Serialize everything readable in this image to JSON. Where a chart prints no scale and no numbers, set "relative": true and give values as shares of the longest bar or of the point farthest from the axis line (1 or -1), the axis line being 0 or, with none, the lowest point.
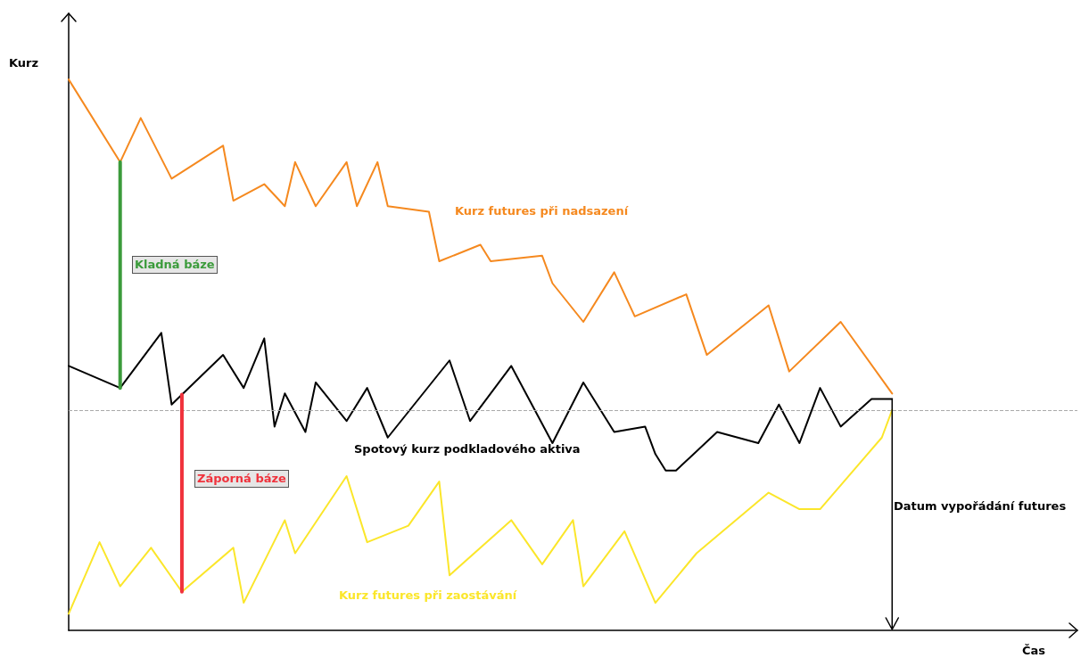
{
  "chart_data": {
    "type": "line",
    "relative": true,
    "xlabel": "Čas",
    "ylabel": "Kurz",
    "categories": [
      null,
      null,
      null,
      null,
      null,
      null,
      null,
      null,
      null,
      null,
      null,
      null,
      null,
      null,
      null,
      null,
      null,
      null,
      null,
      null,
      null,
      null,
      null,
      null,
      null,
      null,
      null,
      null,
      null,
      null,
      null,
      null,
      null,
      null,
      null,
      null,
      null,
      null,
      null,
      null,
      null,
      null,
      null,
      null,
      null,
      null,
      null,
      null,
      null,
      null,
      null,
      null,
      null,
      null,
      null,
      null,
      null,
      null,
      null,
      null,
      null,
      null,
      null,
      null,
      null,
      null,
      null,
      null,
      null,
      null,
      null,
      null,
      null,
      null,
      null,
      null,
      null,
      null,
      null,
      null,
      null,
      null,
      null,
      null,
      null,
      null,
      null,
      null,
      null,
      null,
      null,
      null,
      null,
      null,
      null,
      null,
      null,
      null,
      null
    ],
    "series": [
      {
        "name": "Kurz futures při nadsazení",
        "color": "#f5891f",
        "values": [
          1.0,
          null,
          null,
          null,
          null,
          0.85,
          null,
          0.93,
          null,
          null,
          0.82,
          null,
          null,
          null,
          null,
          0.88,
          0.78,
          null,
          null,
          0.81,
          null,
          0.77,
          0.85,
          null,
          0.77,
          null,
          null,
          0.85,
          0.77,
          null,
          0.85,
          0.77,
          null,
          null,
          null,
          0.76,
          0.67,
          null,
          null,
          null,
          0.7,
          0.67,
          null,
          null,
          null,
          null,
          0.68,
          0.63,
          null,
          null,
          0.56,
          null,
          null,
          0.65,
          null,
          0.57,
          null,
          null,
          null,
          null,
          0.61,
          null,
          0.5,
          null,
          null,
          null,
          null,
          null,
          0.59,
          null,
          0.47,
          null,
          null,
          null,
          null,
          0.56,
          null,
          null,
          null,
          null,
          0.43,
          null,
          null,
          null,
          null,
          null,
          null,
          null,
          null,
          null,
          null,
          null,
          null,
          null,
          null,
          null,
          null,
          null,
          null
        ]
      },
      {
        "name": "Spotový kurz podkladového aktiva",
        "color": "#000000",
        "values": [
          0.48,
          null,
          null,
          null,
          null,
          0.44,
          null,
          null,
          null,
          0.54,
          0.41,
          null,
          null,
          null,
          null,
          0.5,
          null,
          0.44,
          null,
          0.53,
          0.37,
          0.43,
          null,
          0.36,
          0.45,
          null,
          null,
          0.38,
          null,
          0.44,
          null,
          0.35,
          null,
          null,
          null,
          null,
          null,
          0.49,
          null,
          0.38,
          null,
          null,
          null,
          0.48,
          null,
          null,
          null,
          0.34,
          null,
          null,
          0.45,
          null,
          null,
          0.36,
          null,
          null,
          0.37,
          0.32,
          0.29,
          0.29,
          null,
          null,
          null,
          0.36,
          null,
          null,
          null,
          0.34,
          null,
          0.41,
          null,
          0.34,
          null,
          0.44,
          null,
          0.37,
          null,
          null,
          0.42,
          null,
          0.42,
          null,
          null,
          null,
          null,
          null,
          null,
          null,
          null,
          null,
          null,
          null,
          null,
          null,
          null,
          null,
          null,
          null,
          null
        ]
      },
      {
        "name": "Kurz futures při zaostávání",
        "color": "#fbe62a",
        "values": [
          0.03,
          null,
          null,
          0.16,
          null,
          0.08,
          null,
          null,
          0.15,
          null,
          null,
          0.07,
          null,
          null,
          null,
          null,
          0.15,
          0.05,
          null,
          null,
          null,
          0.2,
          0.14,
          null,
          null,
          null,
          null,
          0.28,
          null,
          0.16,
          null,
          null,
          null,
          0.19,
          null,
          null,
          0.27,
          0.1,
          null,
          null,
          null,
          null,
          null,
          0.2,
          null,
          null,
          0.12,
          null,
          null,
          0.2,
          0.08,
          null,
          null,
          null,
          0.18,
          null,
          null,
          0.05,
          null,
          null,
          null,
          0.14,
          null,
          null,
          null,
          null,
          null,
          null,
          0.25,
          null,
          null,
          0.22,
          null,
          0.22,
          null,
          null,
          null,
          null,
          null,
          0.35,
          0.4,
          null,
          null,
          null,
          null,
          null,
          null,
          null,
          null,
          null,
          null,
          null,
          null,
          null,
          null,
          null,
          null,
          null,
          null
        ]
      }
    ],
    "ref_lines": [
      {
        "axis": "y",
        "value": 0.4,
        "color": "#aaaaaa",
        "line_style": "dashed"
      }
    ],
    "annotations": [
      "Datum vypořádání futures",
      "Kladná báze",
      "Záporná báze"
    ]
  }
}
